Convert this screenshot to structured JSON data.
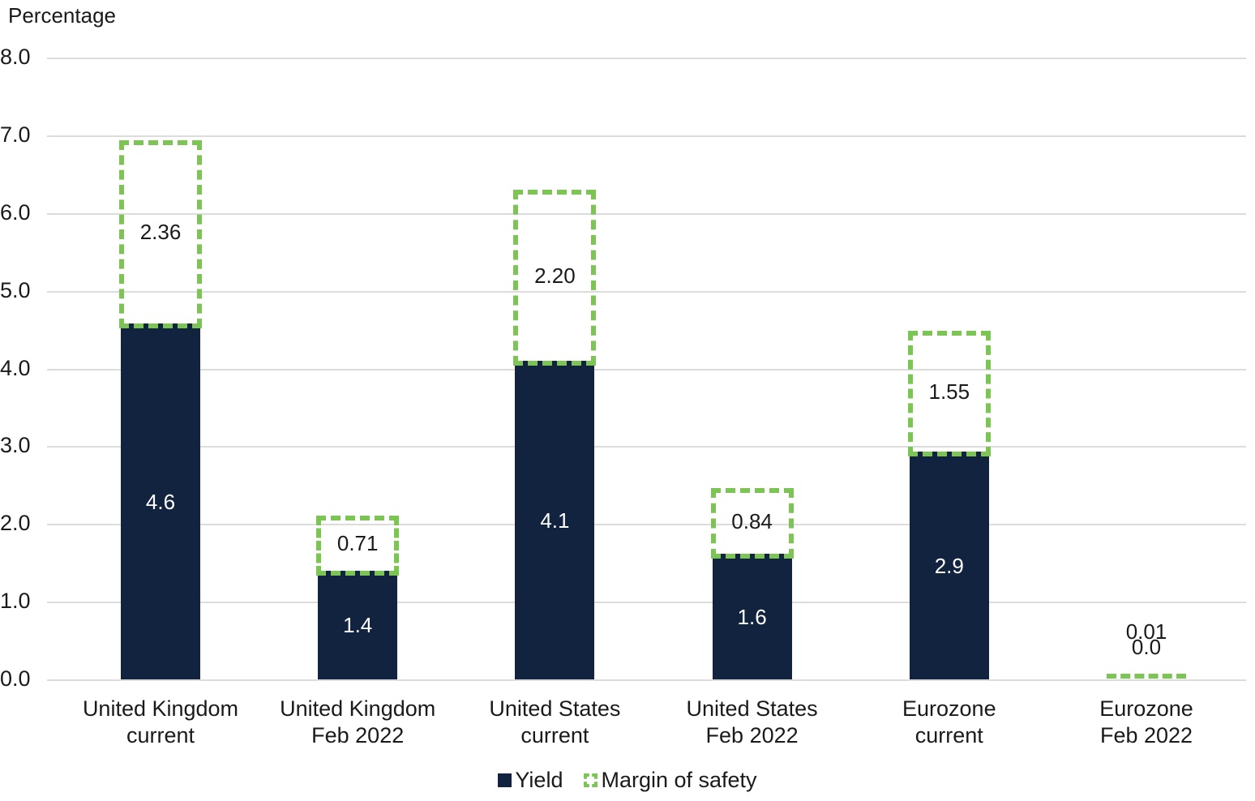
{
  "chart_data": {
    "type": "bar",
    "stacked": true,
    "title": "",
    "ylabel": "Percentage",
    "xlabel": "",
    "ylim": [
      0,
      8
    ],
    "ytick_step": 1.0,
    "yticks": [
      "0.0",
      "1.0",
      "2.0",
      "3.0",
      "4.0",
      "5.0",
      "6.0",
      "7.0",
      "8.0"
    ],
    "grid": true,
    "legend_position": "bottom",
    "categories": [
      "United Kingdom\ncurrent",
      "United Kingdom\nFeb 2022",
      "United States\ncurrent",
      "United States\nFeb 2022",
      "Eurozone\ncurrent",
      "Eurozone\nFeb 2022"
    ],
    "series": [
      {
        "name": "Yield",
        "style": "solid",
        "color": "#12233f",
        "values": [
          4.58,
          1.4,
          4.1,
          1.62,
          2.93,
          0.0
        ],
        "labels": [
          "4.6",
          "1.4",
          "4.1",
          "1.6",
          "2.9",
          "0.0"
        ]
      },
      {
        "name": "Margin of safety",
        "style": "dashed-outline",
        "color": "#7cc453",
        "values": [
          2.36,
          0.71,
          2.2,
          0.84,
          1.55,
          0.01
        ],
        "labels": [
          "2.36",
          "0.71",
          "2.20",
          "0.84",
          "1.55",
          "0.01"
        ]
      }
    ],
    "colors": {
      "yield_fill": "#12233f",
      "margin_outline": "#7cc453",
      "gridline": "#dcdcdc",
      "text": "#1a1a1a",
      "inside_label": "#ffffff"
    }
  }
}
